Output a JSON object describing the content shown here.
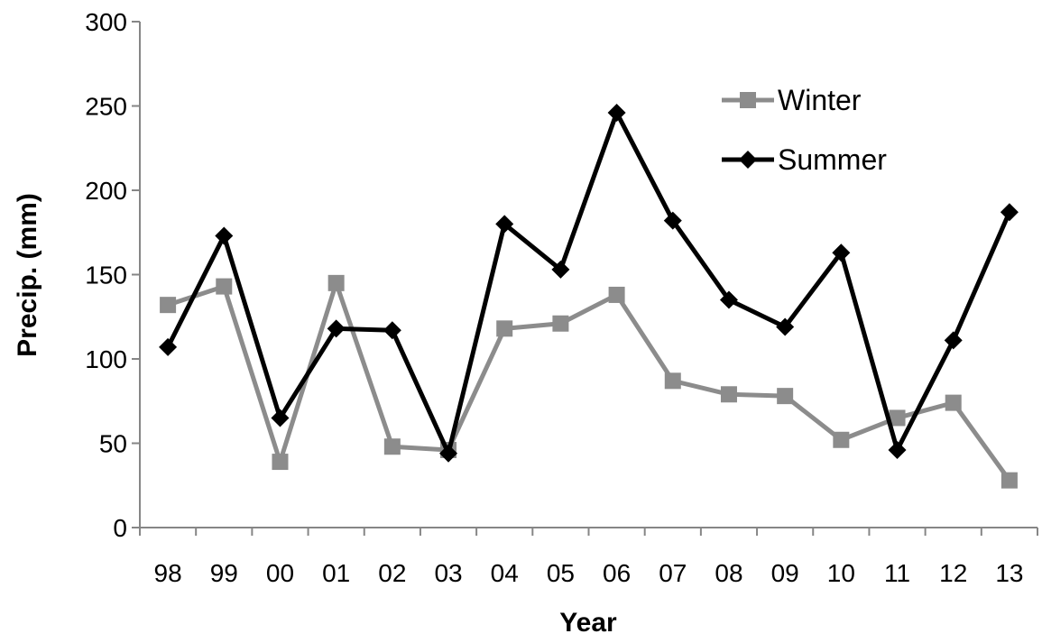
{
  "chart_data": {
    "type": "line",
    "categories": [
      "98",
      "99",
      "00",
      "01",
      "02",
      "03",
      "04",
      "05",
      "06",
      "07",
      "08",
      "09",
      "10",
      "11",
      "12",
      "13"
    ],
    "series": [
      {
        "name": "Winter",
        "color": "#8c8c8c",
        "marker": "square",
        "values": [
          132,
          143,
          39,
          145,
          48,
          46,
          118,
          121,
          138,
          87,
          79,
          78,
          52,
          65,
          74,
          28
        ]
      },
      {
        "name": "Summer",
        "color": "#000000",
        "marker": "diamond",
        "values": [
          107,
          173,
          65,
          118,
          117,
          44,
          180,
          153,
          246,
          182,
          135,
          119,
          163,
          46,
          111,
          187
        ]
      }
    ],
    "xlabel": "Year",
    "ylabel": "Precip. (mm)",
    "ylim": [
      0,
      300
    ],
    "yticks": [
      0,
      50,
      100,
      150,
      200,
      250,
      300
    ],
    "grid": false,
    "legend_position": "top-right"
  }
}
